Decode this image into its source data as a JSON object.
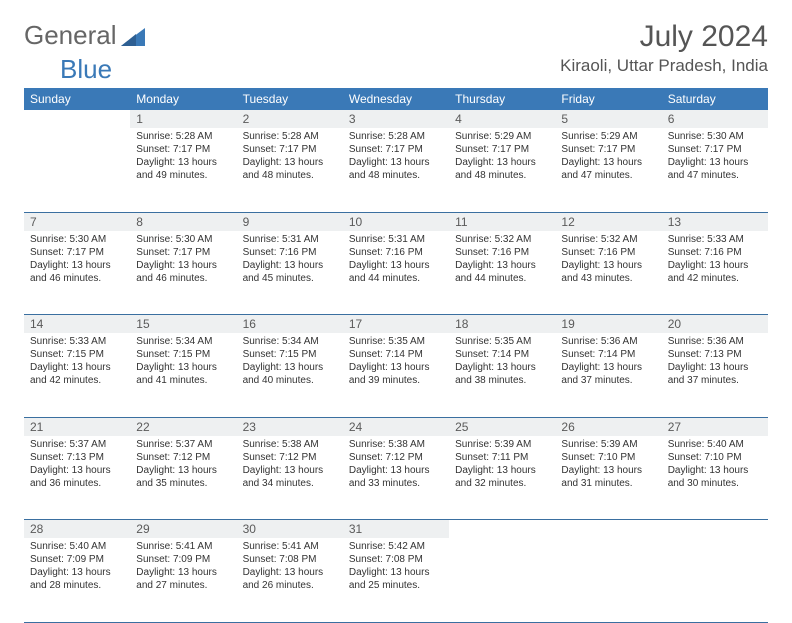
{
  "brand": {
    "part1": "General",
    "part2": "Blue"
  },
  "title": "July 2024",
  "location": "Kiraoli, Uttar Pradesh, India",
  "colors": {
    "headerBg": "#3a79b7",
    "headerText": "#ffffff",
    "dayNumBg": "#eef0f1",
    "rowBorder": "#3a6fa0",
    "bodyText": "#333333",
    "titleText": "#555555"
  },
  "weekdays": [
    "Sunday",
    "Monday",
    "Tuesday",
    "Wednesday",
    "Thursday",
    "Friday",
    "Saturday"
  ],
  "weeks": [
    {
      "nums": [
        "",
        "1",
        "2",
        "3",
        "4",
        "5",
        "6"
      ],
      "cells": [
        {},
        {
          "sunrise": "Sunrise: 5:28 AM",
          "sunset": "Sunset: 7:17 PM",
          "day1": "Daylight: 13 hours",
          "day2": "and 49 minutes."
        },
        {
          "sunrise": "Sunrise: 5:28 AM",
          "sunset": "Sunset: 7:17 PM",
          "day1": "Daylight: 13 hours",
          "day2": "and 48 minutes."
        },
        {
          "sunrise": "Sunrise: 5:28 AM",
          "sunset": "Sunset: 7:17 PM",
          "day1": "Daylight: 13 hours",
          "day2": "and 48 minutes."
        },
        {
          "sunrise": "Sunrise: 5:29 AM",
          "sunset": "Sunset: 7:17 PM",
          "day1": "Daylight: 13 hours",
          "day2": "and 48 minutes."
        },
        {
          "sunrise": "Sunrise: 5:29 AM",
          "sunset": "Sunset: 7:17 PM",
          "day1": "Daylight: 13 hours",
          "day2": "and 47 minutes."
        },
        {
          "sunrise": "Sunrise: 5:30 AM",
          "sunset": "Sunset: 7:17 PM",
          "day1": "Daylight: 13 hours",
          "day2": "and 47 minutes."
        }
      ]
    },
    {
      "nums": [
        "7",
        "8",
        "9",
        "10",
        "11",
        "12",
        "13"
      ],
      "cells": [
        {
          "sunrise": "Sunrise: 5:30 AM",
          "sunset": "Sunset: 7:17 PM",
          "day1": "Daylight: 13 hours",
          "day2": "and 46 minutes."
        },
        {
          "sunrise": "Sunrise: 5:30 AM",
          "sunset": "Sunset: 7:17 PM",
          "day1": "Daylight: 13 hours",
          "day2": "and 46 minutes."
        },
        {
          "sunrise": "Sunrise: 5:31 AM",
          "sunset": "Sunset: 7:16 PM",
          "day1": "Daylight: 13 hours",
          "day2": "and 45 minutes."
        },
        {
          "sunrise": "Sunrise: 5:31 AM",
          "sunset": "Sunset: 7:16 PM",
          "day1": "Daylight: 13 hours",
          "day2": "and 44 minutes."
        },
        {
          "sunrise": "Sunrise: 5:32 AM",
          "sunset": "Sunset: 7:16 PM",
          "day1": "Daylight: 13 hours",
          "day2": "and 44 minutes."
        },
        {
          "sunrise": "Sunrise: 5:32 AM",
          "sunset": "Sunset: 7:16 PM",
          "day1": "Daylight: 13 hours",
          "day2": "and 43 minutes."
        },
        {
          "sunrise": "Sunrise: 5:33 AM",
          "sunset": "Sunset: 7:16 PM",
          "day1": "Daylight: 13 hours",
          "day2": "and 42 minutes."
        }
      ]
    },
    {
      "nums": [
        "14",
        "15",
        "16",
        "17",
        "18",
        "19",
        "20"
      ],
      "cells": [
        {
          "sunrise": "Sunrise: 5:33 AM",
          "sunset": "Sunset: 7:15 PM",
          "day1": "Daylight: 13 hours",
          "day2": "and 42 minutes."
        },
        {
          "sunrise": "Sunrise: 5:34 AM",
          "sunset": "Sunset: 7:15 PM",
          "day1": "Daylight: 13 hours",
          "day2": "and 41 minutes."
        },
        {
          "sunrise": "Sunrise: 5:34 AM",
          "sunset": "Sunset: 7:15 PM",
          "day1": "Daylight: 13 hours",
          "day2": "and 40 minutes."
        },
        {
          "sunrise": "Sunrise: 5:35 AM",
          "sunset": "Sunset: 7:14 PM",
          "day1": "Daylight: 13 hours",
          "day2": "and 39 minutes."
        },
        {
          "sunrise": "Sunrise: 5:35 AM",
          "sunset": "Sunset: 7:14 PM",
          "day1": "Daylight: 13 hours",
          "day2": "and 38 minutes."
        },
        {
          "sunrise": "Sunrise: 5:36 AM",
          "sunset": "Sunset: 7:14 PM",
          "day1": "Daylight: 13 hours",
          "day2": "and 37 minutes."
        },
        {
          "sunrise": "Sunrise: 5:36 AM",
          "sunset": "Sunset: 7:13 PM",
          "day1": "Daylight: 13 hours",
          "day2": "and 37 minutes."
        }
      ]
    },
    {
      "nums": [
        "21",
        "22",
        "23",
        "24",
        "25",
        "26",
        "27"
      ],
      "cells": [
        {
          "sunrise": "Sunrise: 5:37 AM",
          "sunset": "Sunset: 7:13 PM",
          "day1": "Daylight: 13 hours",
          "day2": "and 36 minutes."
        },
        {
          "sunrise": "Sunrise: 5:37 AM",
          "sunset": "Sunset: 7:12 PM",
          "day1": "Daylight: 13 hours",
          "day2": "and 35 minutes."
        },
        {
          "sunrise": "Sunrise: 5:38 AM",
          "sunset": "Sunset: 7:12 PM",
          "day1": "Daylight: 13 hours",
          "day2": "and 34 minutes."
        },
        {
          "sunrise": "Sunrise: 5:38 AM",
          "sunset": "Sunset: 7:12 PM",
          "day1": "Daylight: 13 hours",
          "day2": "and 33 minutes."
        },
        {
          "sunrise": "Sunrise: 5:39 AM",
          "sunset": "Sunset: 7:11 PM",
          "day1": "Daylight: 13 hours",
          "day2": "and 32 minutes."
        },
        {
          "sunrise": "Sunrise: 5:39 AM",
          "sunset": "Sunset: 7:10 PM",
          "day1": "Daylight: 13 hours",
          "day2": "and 31 minutes."
        },
        {
          "sunrise": "Sunrise: 5:40 AM",
          "sunset": "Sunset: 7:10 PM",
          "day1": "Daylight: 13 hours",
          "day2": "and 30 minutes."
        }
      ]
    },
    {
      "nums": [
        "28",
        "29",
        "30",
        "31",
        "",
        "",
        ""
      ],
      "cells": [
        {
          "sunrise": "Sunrise: 5:40 AM",
          "sunset": "Sunset: 7:09 PM",
          "day1": "Daylight: 13 hours",
          "day2": "and 28 minutes."
        },
        {
          "sunrise": "Sunrise: 5:41 AM",
          "sunset": "Sunset: 7:09 PM",
          "day1": "Daylight: 13 hours",
          "day2": "and 27 minutes."
        },
        {
          "sunrise": "Sunrise: 5:41 AM",
          "sunset": "Sunset: 7:08 PM",
          "day1": "Daylight: 13 hours",
          "day2": "and 26 minutes."
        },
        {
          "sunrise": "Sunrise: 5:42 AM",
          "sunset": "Sunset: 7:08 PM",
          "day1": "Daylight: 13 hours",
          "day2": "and 25 minutes."
        },
        {},
        {},
        {}
      ]
    }
  ]
}
